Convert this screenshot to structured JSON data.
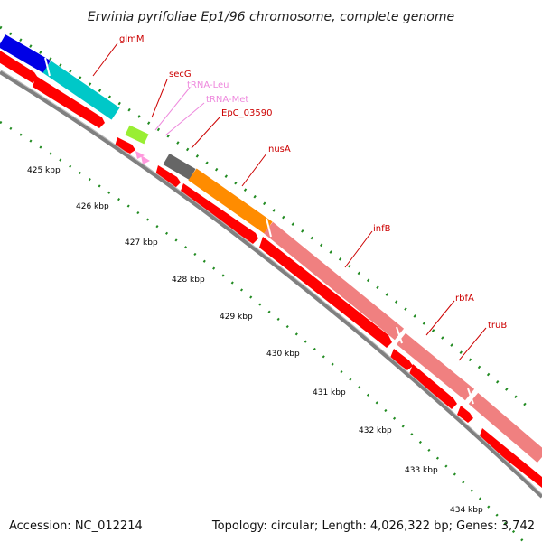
{
  "title": "Erwinia pyrifoliae Ep1/96 chromosome, complete genome",
  "footer": {
    "accession": "Accession: NC_012214",
    "summary": "Topology: circular; Length: 4,026,322 bp; Genes: 3,742"
  },
  "colors": {
    "cds": "#ff0000",
    "tick": "#228b22",
    "backbone": "#808080",
    "label_red": "#cc0000",
    "label_pink": "#ee82ee"
  },
  "ticks": [
    "425 kbp",
    "426 kbp",
    "427 kbp",
    "428 kbp",
    "429 kbp",
    "430 kbp",
    "431 kbp",
    "432 kbp",
    "433 kbp",
    "434 kbp"
  ],
  "genes": [
    {
      "name": "glmM",
      "color": "#0000e6",
      "label_color": "#cc0000"
    },
    {
      "name": "",
      "color": "#00c8c8",
      "label_color": "#cc0000"
    },
    {
      "name": "secG",
      "color": "#99ee33",
      "label_color": "#cc0000"
    },
    {
      "name": "tRNA-Leu",
      "color": "#ff99dd",
      "label_color": "#ee88dd"
    },
    {
      "name": "tRNA-Met",
      "color": "#ff99dd",
      "label_color": "#ee88dd"
    },
    {
      "name": "EpC_03590",
      "color": "#666666",
      "label_color": "#cc0000"
    },
    {
      "name": "nusA",
      "color": "#ff8c00",
      "label_color": "#cc0000"
    },
    {
      "name": "infB",
      "color": "#f08080",
      "label_color": "#cc0000"
    },
    {
      "name": "rbfA",
      "color": "#f08080",
      "label_color": "#cc0000"
    },
    {
      "name": "truB",
      "color": "#f08080",
      "label_color": "#cc0000"
    }
  ]
}
